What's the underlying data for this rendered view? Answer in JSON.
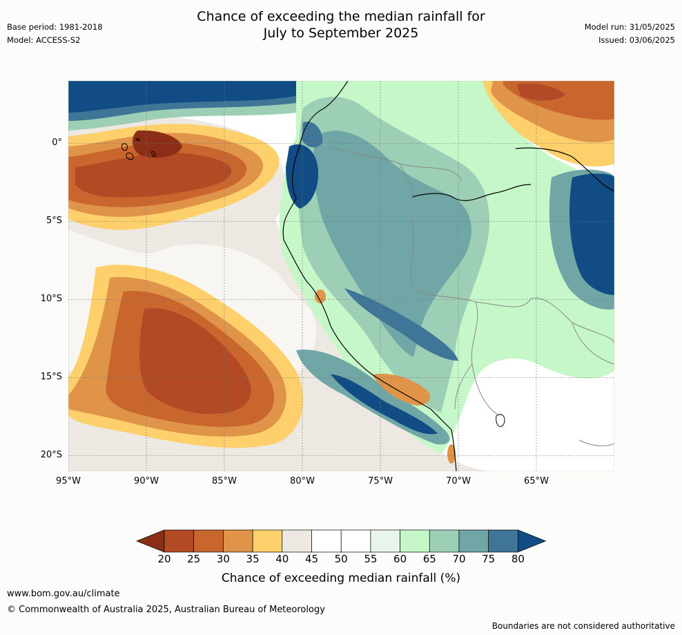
{
  "title": {
    "line1": "Chance of exceeding the median rainfall for",
    "line2": "July to September 2025"
  },
  "meta_left": {
    "base_period": "Base period: 1981-2018",
    "model": "Model: ACCESS-S2"
  },
  "meta_right": {
    "model_run": "Model run: 31/05/2025",
    "issued": "Issued: 03/06/2025"
  },
  "map": {
    "lon_labels": [
      "95°W",
      "90°W",
      "85°W",
      "80°W",
      "75°W",
      "70°W",
      "65°W"
    ],
    "lat_labels": [
      "0°",
      "5°S",
      "10°S",
      "15°S",
      "20°S"
    ],
    "lon_values": [
      -95,
      -90,
      -85,
      -80,
      -75,
      -70,
      -65
    ],
    "lat_values": [
      0,
      -5,
      -10,
      -15,
      -20
    ],
    "lon_range": [
      -95,
      -60
    ],
    "lat_range": [
      -21,
      4
    ],
    "grid": "dotted"
  },
  "colorbar": {
    "title": "Chance of exceeding median rainfall (%)",
    "ticks": [
      "20",
      "25",
      "30",
      "35",
      "40",
      "45",
      "50",
      "55",
      "60",
      "65",
      "70",
      "75",
      "80"
    ],
    "colors": [
      "#8c2d17",
      "#b24a25",
      "#c9662e",
      "#e0944a",
      "#fdd06c",
      "#ede9e2",
      "#ffffff",
      "#ffffff",
      "#e9f4ea",
      "#c6f7c8",
      "#9ccfb5",
      "#70a6a5",
      "#3f7597",
      "#114d84"
    ]
  },
  "footer": {
    "url": "www.bom.gov.au/climate",
    "copyright": "© Commonwealth of Australia 2025, Australian Bureau of Meteorology",
    "disclaimer": "Boundaries are not considered authoritative"
  }
}
